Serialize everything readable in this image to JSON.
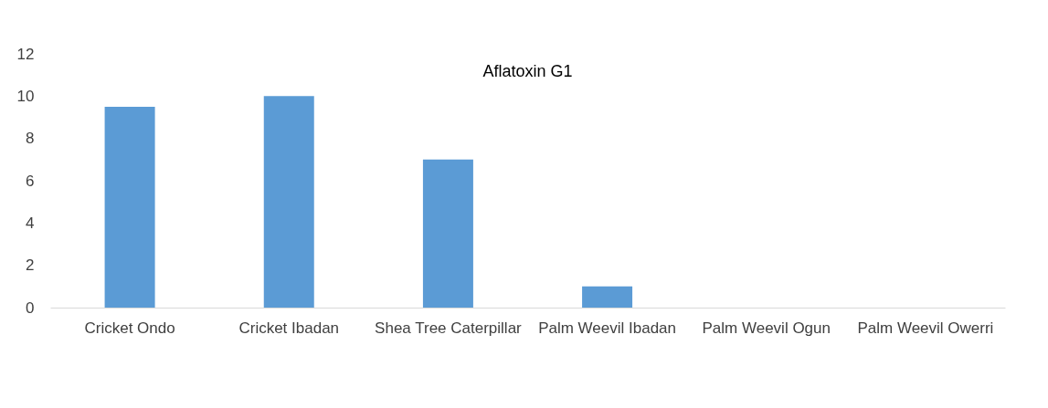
{
  "chart_data": {
    "type": "bar",
    "title": "Aflatoxin G1",
    "categories": [
      "Cricket Ondo",
      "Cricket Ibadan",
      "Shea Tree Caterpillar",
      "Palm Weevil Ibadan",
      "Palm Weevil Ogun",
      "Palm Weevil Owerri"
    ],
    "values": [
      9.5,
      10,
      7,
      1,
      0,
      0
    ],
    "color": "#5b9bd5",
    "ylim": [
      0,
      12
    ],
    "yticks": [
      0,
      2,
      4,
      6,
      8,
      10,
      12
    ],
    "grid": false
  }
}
